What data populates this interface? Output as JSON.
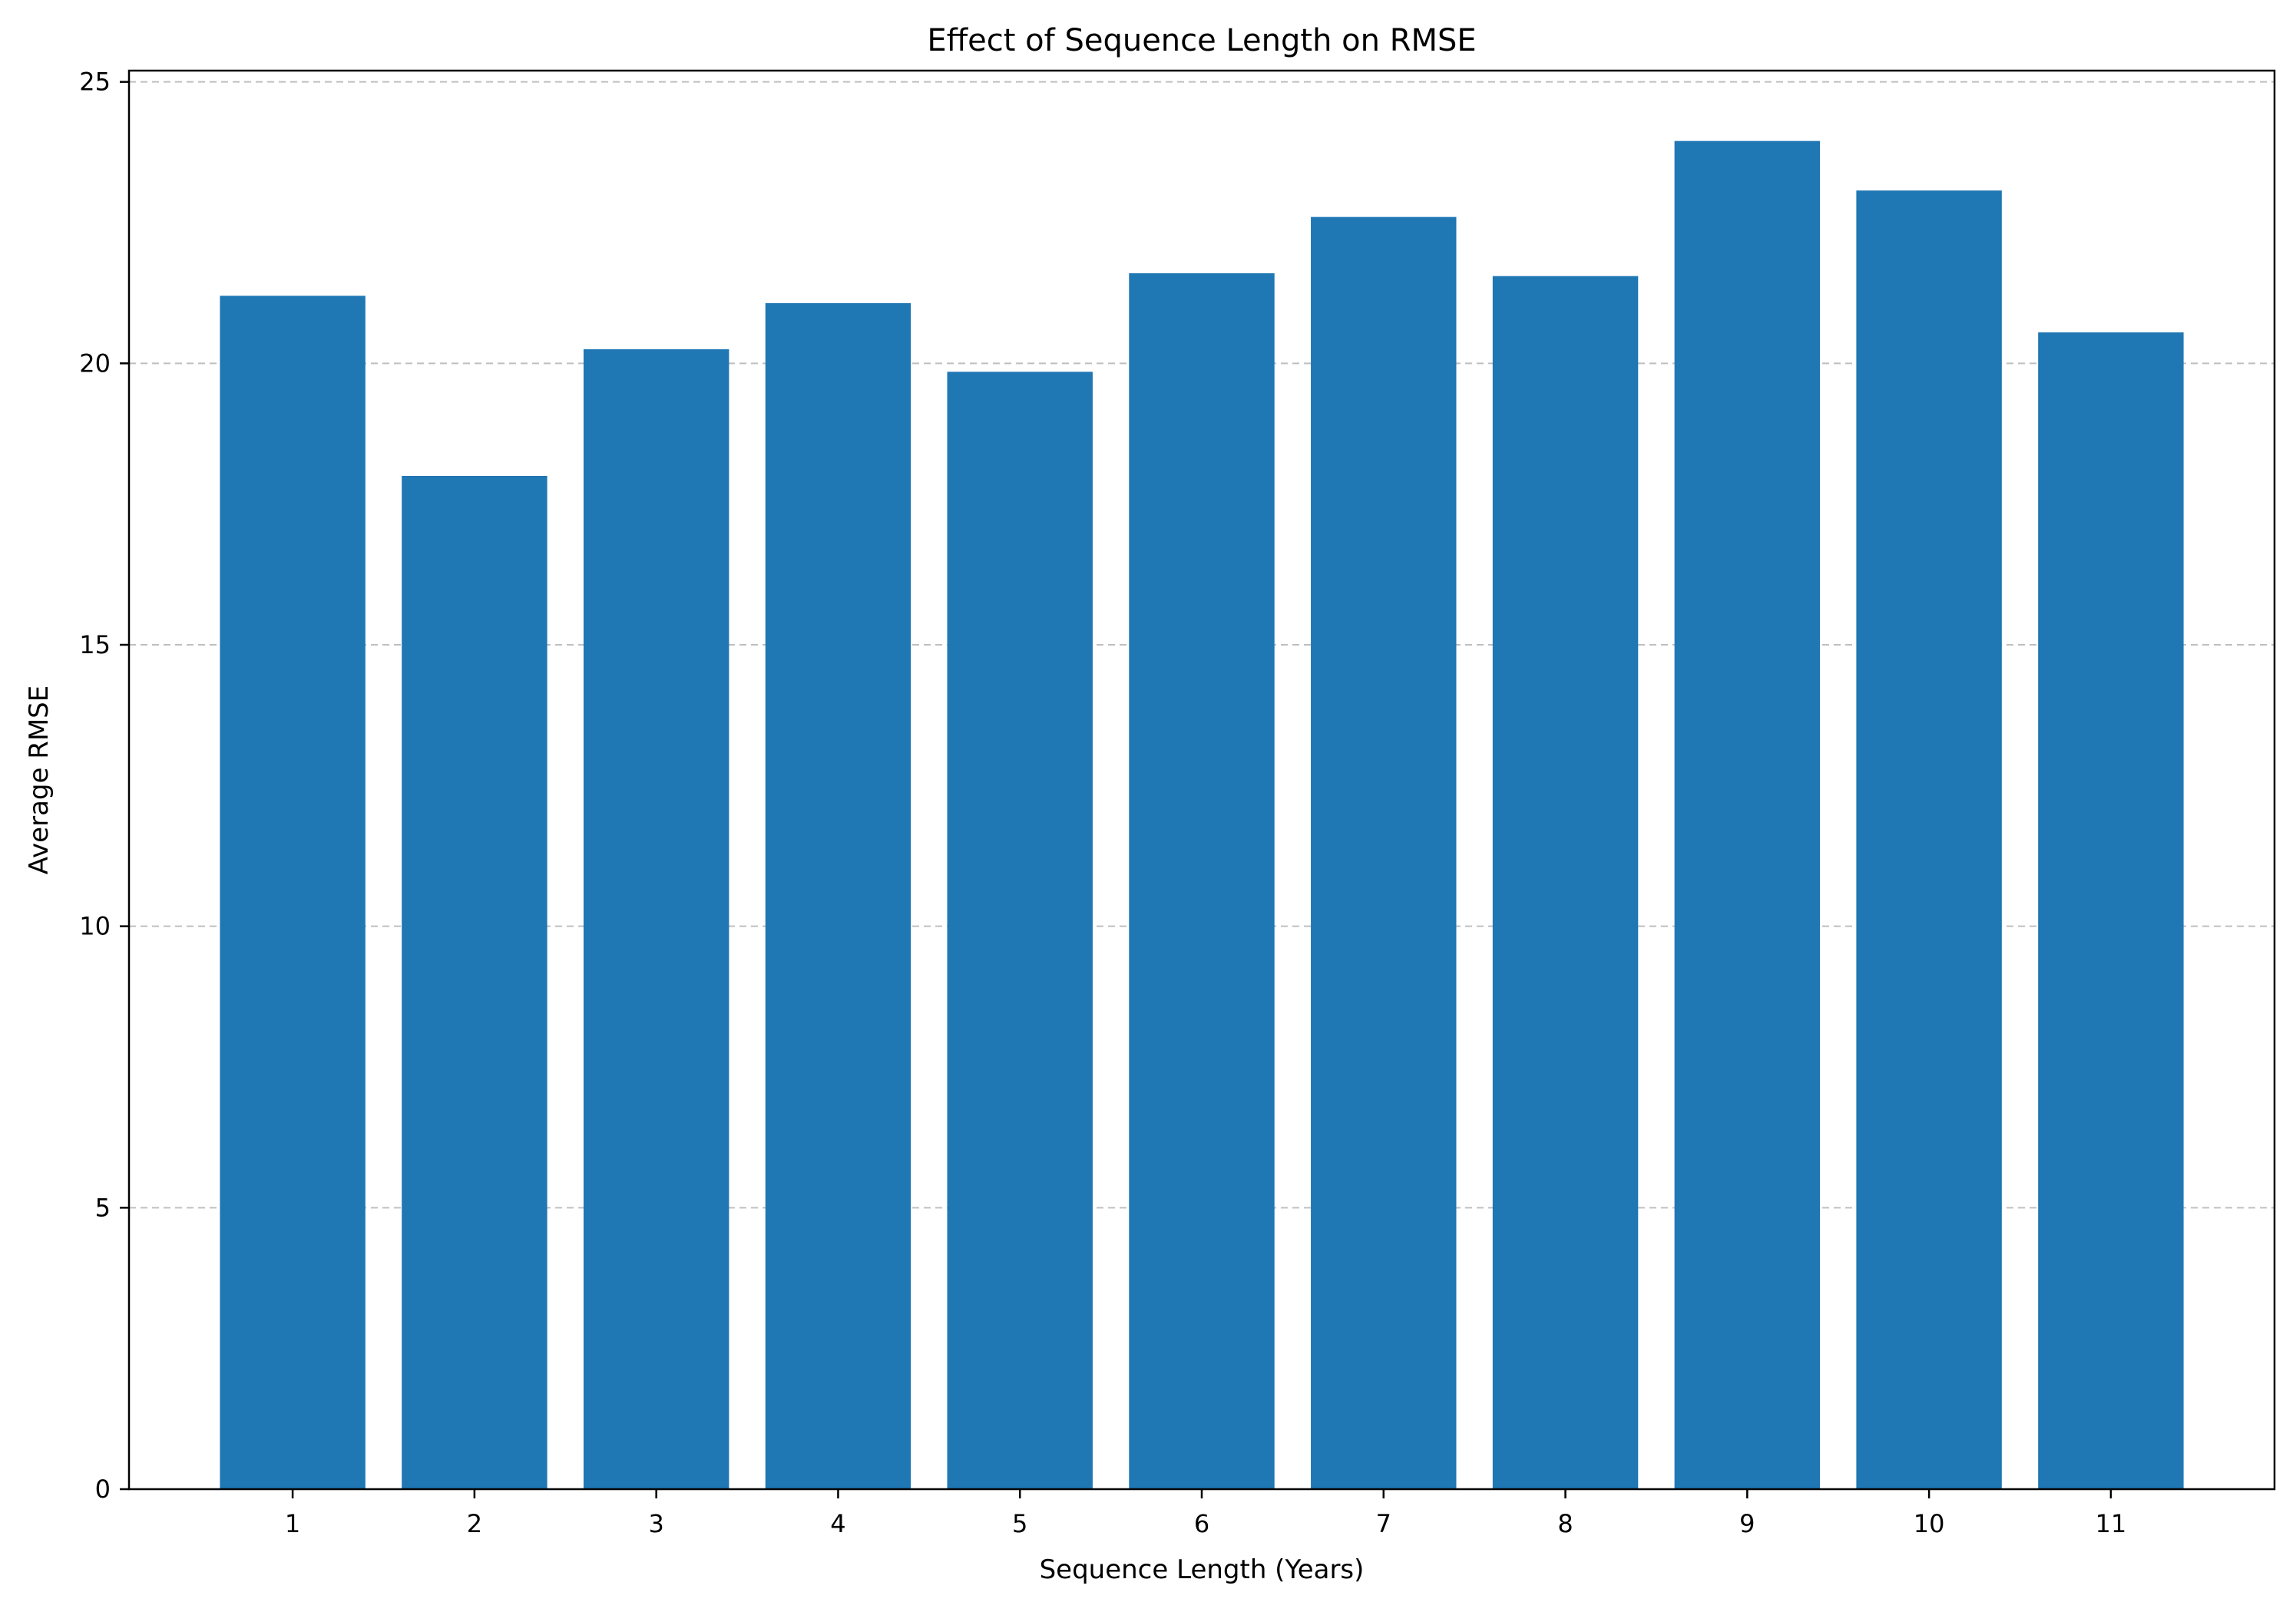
{
  "chart_data": {
    "type": "bar",
    "title": "Effect of Sequence Length on RMSE",
    "xlabel": "Sequence Length (Years)",
    "ylabel": "Average RMSE",
    "categories": [
      "1",
      "2",
      "3",
      "4",
      "5",
      "6",
      "7",
      "8",
      "9",
      "10",
      "11"
    ],
    "values": [
      21.2,
      18.0,
      20.25,
      21.07,
      19.85,
      21.6,
      22.6,
      21.55,
      23.95,
      23.07,
      20.55
    ],
    "ylim": [
      0,
      25.2
    ],
    "yticks": [
      0,
      5,
      10,
      15,
      20,
      25
    ],
    "grid": "y, dashed",
    "legend": "none",
    "bar_color": "#1f77b4",
    "grid_color": "#b0b0b0"
  }
}
